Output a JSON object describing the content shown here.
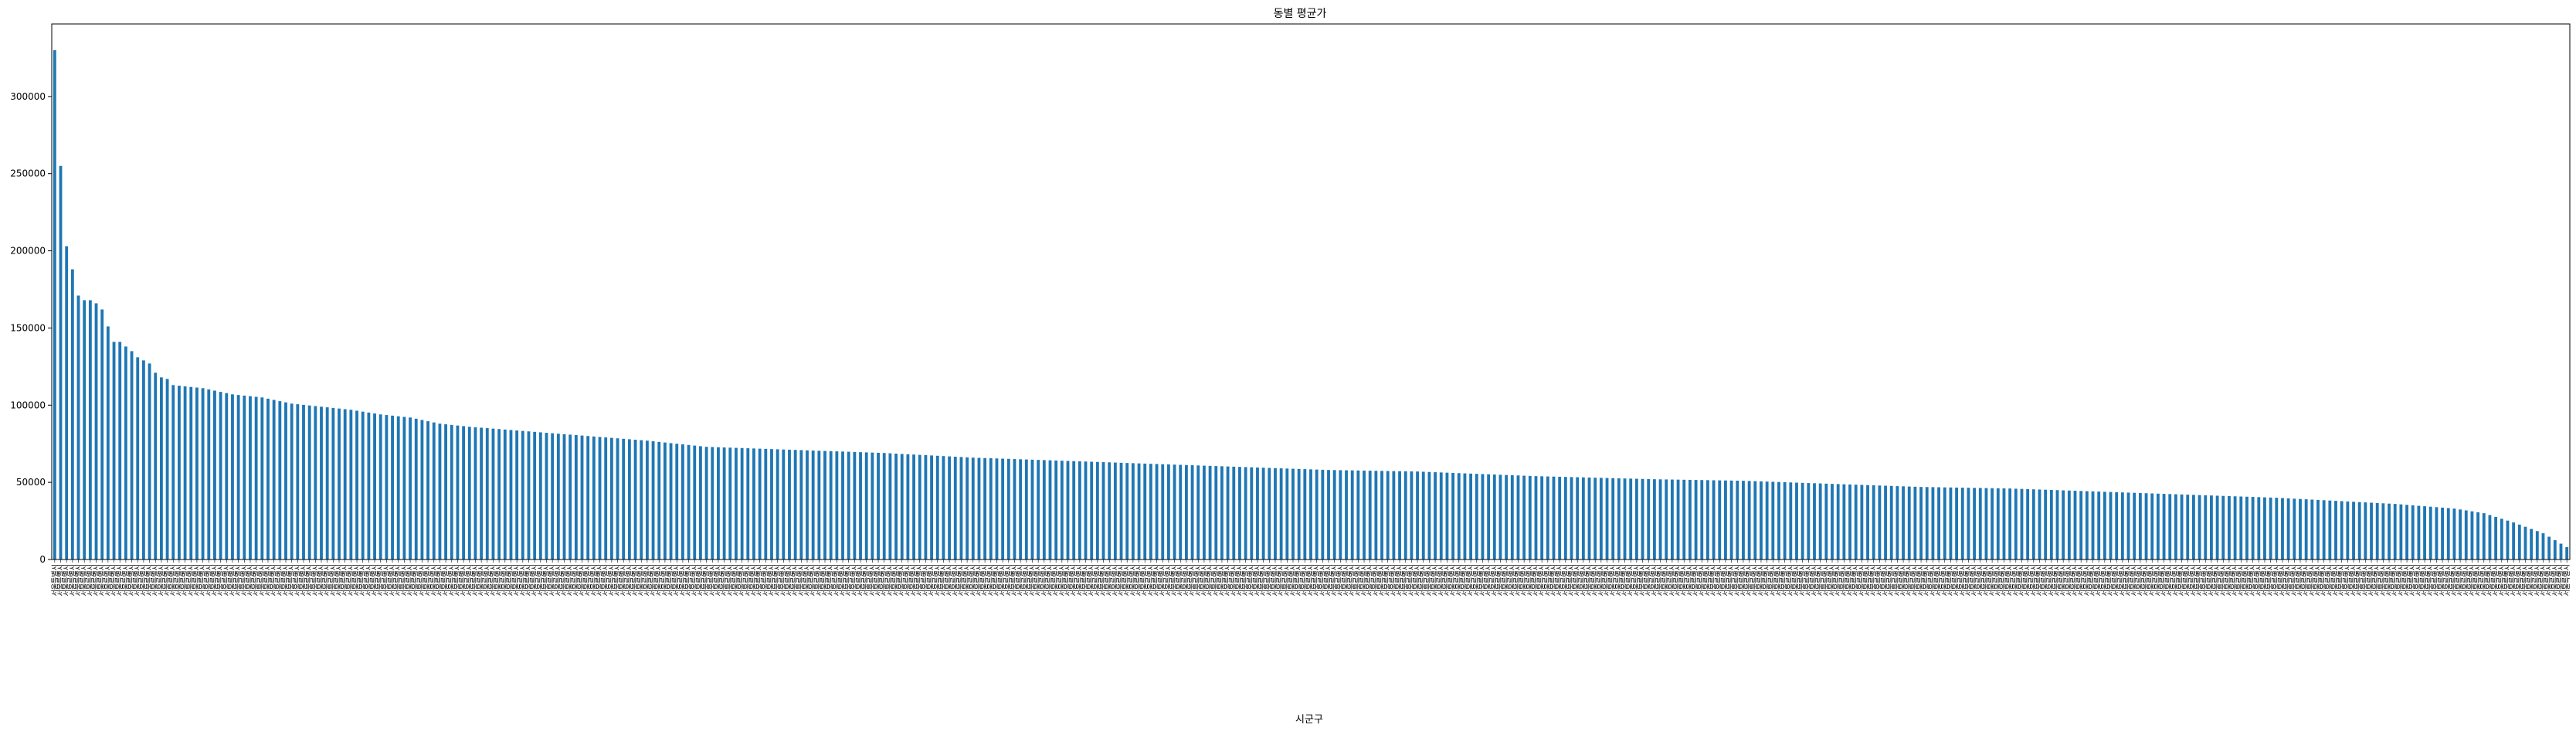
{
  "chart_data": {
    "type": "bar",
    "title": "동별 평균가",
    "xlabel": "시군구",
    "ylabel": "",
    "ylim": [
      0,
      347000
    ],
    "yticks": [
      0,
      50000,
      100000,
      150000,
      200000,
      250000,
      300000
    ],
    "bar_color": "#1f77b4",
    "grid": false,
    "legend": "none",
    "bar_count": 425,
    "category_label_prefix": "서울특별시",
    "value_profile": [
      [
        0,
        330000
      ],
      [
        1,
        255000
      ],
      [
        2,
        203000
      ],
      [
        3,
        188000
      ],
      [
        4,
        171000
      ],
      [
        5,
        168000
      ],
      [
        6,
        168000
      ],
      [
        7,
        166000
      ],
      [
        8,
        162000
      ],
      [
        9,
        151000
      ],
      [
        10,
        141000
      ],
      [
        11,
        141000
      ],
      [
        12,
        138000
      ],
      [
        13,
        135000
      ],
      [
        14,
        131000
      ],
      [
        15,
        129000
      ],
      [
        16,
        127000
      ],
      [
        17,
        121000
      ],
      [
        18,
        118000
      ],
      [
        19,
        117000
      ],
      [
        20,
        113000
      ],
      [
        25,
        111000
      ],
      [
        30,
        107000
      ],
      [
        35,
        105000
      ],
      [
        40,
        101000
      ],
      [
        45,
        99000
      ],
      [
        50,
        97000
      ],
      [
        55,
        94000
      ],
      [
        60,
        92000
      ],
      [
        65,
        88000
      ],
      [
        70,
        86000
      ],
      [
        80,
        83000
      ],
      [
        90,
        80000
      ],
      [
        100,
        77000
      ],
      [
        110,
        73000
      ],
      [
        125,
        71000
      ],
      [
        140,
        69000
      ],
      [
        155,
        66000
      ],
      [
        170,
        64000
      ],
      [
        185,
        62000
      ],
      [
        200,
        60000
      ],
      [
        215,
        58000
      ],
      [
        230,
        57000
      ],
      [
        250,
        54000
      ],
      [
        270,
        52000
      ],
      [
        285,
        51000
      ],
      [
        300,
        49000
      ],
      [
        315,
        47000
      ],
      [
        330,
        46000
      ],
      [
        345,
        44000
      ],
      [
        360,
        42000
      ],
      [
        375,
        40000
      ],
      [
        385,
        38000
      ],
      [
        395,
        36000
      ],
      [
        405,
        33000
      ],
      [
        410,
        30000
      ],
      [
        415,
        24000
      ],
      [
        420,
        17000
      ],
      [
        424,
        8000
      ]
    ]
  }
}
